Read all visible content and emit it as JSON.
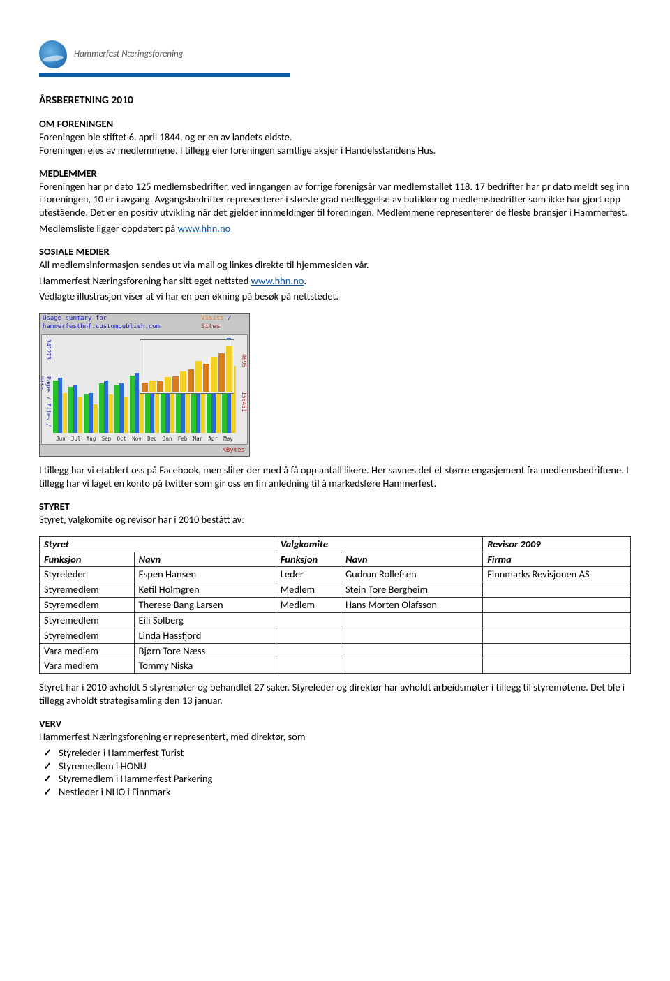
{
  "logo_text": "Hammerfest Næringsforening",
  "title": "ÅRSBERETNING 2010",
  "sections": {
    "om_foreningen": {
      "heading": "OM FORENINGEN",
      "text": "Foreningen ble stiftet 6. april 1844, og er en av landets eldste.\nForeningen eies av medlemmene. I tillegg eier foreningen samtlige aksjer i Handelsstandens Hus."
    },
    "medlemmer": {
      "heading": "MEDLEMMER",
      "text": "Foreningen har pr dato 125 medlemsbedrifter, ved inngangen av forrige forenigsår var medlemstallet 118. 17 bedrifter har pr dato meldt seg inn i foreningen, 10 er i avgang. Avgangsbedrifter representerer i største grad nedleggelse av butikker og medlemsbedrifter som ikke har gjort opp utestående. Det er en positiv utvikling når det gjelder innmeldinger til foreningen. Medlemmene representerer de fleste bransjer i Hammerfest.",
      "link_intro": "Medlemsliste ligger oppdatert på ",
      "link_text": "www.hhn.no",
      "link_url": "http://www.hhn.no"
    },
    "sosiale_medier": {
      "heading": "SOSIALE MEDIER",
      "line1": "All medlemsinformasjon sendes ut via mail og linkes direkte til hjemmesiden vår.",
      "line2a": "Hammerfest Næringsforening har sitt eget nettsted ",
      "link_text": "www.hhn.no",
      "line2b": ".",
      "line3": "Vedlagte illustrasjon viser at vi har en pen økning på besøk på nettstedet."
    },
    "chart": {
      "title_left": "Usage summary for hammerfesthnf.custompublish.com",
      "title_right_a": "Visits",
      "title_right_b": "Sites",
      "left_axis_top": "341273",
      "left_axis_label": "Pages / Files / Hits",
      "right_axis_top": "4695",
      "right_axis_mid": "156451",
      "bottom_label": "KBytes",
      "months": [
        "Jun",
        "Jul",
        "Aug",
        "Sep",
        "Oct",
        "Nov",
        "Dec",
        "Jan",
        "Feb",
        "Mar",
        "Apr",
        "May"
      ],
      "main_bar_heights_pct": [
        [
          55,
          58,
          42
        ],
        [
          48,
          50,
          38
        ],
        [
          40,
          42,
          30
        ],
        [
          52,
          55,
          40
        ],
        [
          50,
          52,
          38
        ],
        [
          60,
          63,
          45
        ],
        [
          62,
          66,
          48
        ],
        [
          78,
          82,
          55
        ],
        [
          70,
          74,
          52
        ],
        [
          80,
          85,
          58
        ],
        [
          85,
          90,
          62
        ],
        [
          95,
          100,
          70
        ]
      ],
      "main_bar_colors": [
        "#2bbf2b",
        "#2b6bd6",
        "#f2d024"
      ],
      "inset_bar_heights_pct": [
        18,
        22,
        20,
        28,
        30,
        40,
        44,
        60,
        55,
        68,
        76,
        90
      ],
      "inset_bar_colors": [
        "#d97a1e",
        "#f2d024"
      ]
    },
    "after_chart": "I tillegg har vi etablert oss på Facebook, men sliter der med å få opp antall likere. Her savnes det et større engasjement fra medlemsbedriftene. I tillegg har vi laget en konto på twitter som gir oss en fin anledning til å markedsføre Hammerfest.",
    "styret": {
      "heading": "STYRET",
      "intro": "Styret, valgkomite og revisor har i 2010 bestått av:",
      "group_headers": [
        "Styret",
        "Valgkomite",
        "Revisor 2009"
      ],
      "col_headers": [
        "Funksjon",
        "Navn",
        "Funksjon",
        "Navn",
        "Firma"
      ],
      "rows": [
        [
          "Styreleder",
          "Espen Hansen",
          "Leder",
          "Gudrun Rollefsen",
          "Finnmarks Revisjonen AS"
        ],
        [
          "Styremedlem",
          "Ketil Holmgren",
          "Medlem",
          "Stein Tore Bergheim",
          ""
        ],
        [
          "Styremedlem",
          "Therese Bang Larsen",
          "Medlem",
          "Hans Morten Olafsson",
          ""
        ],
        [
          "Styremedlem",
          "Eili Solberg",
          "",
          "",
          ""
        ],
        [
          "Styremedlem",
          "Linda Hassfjord",
          "",
          "",
          ""
        ],
        [
          "Vara medlem",
          "Bjørn Tore Næss",
          "",
          "",
          ""
        ],
        [
          "Vara medlem",
          "Tommy Niska",
          "",
          "",
          ""
        ]
      ],
      "after": "Styret har i 2010 avholdt 5 styremøter og behandlet 27 saker. Styreleder og direktør har avholdt arbeidsmøter i tillegg til styremøtene. Det ble i tillegg avholdt strategisamling den 13 januar."
    },
    "verv": {
      "heading": "VERV",
      "intro": "Hammerfest Næringsforening er representert, med direktør, som",
      "items": [
        "Styreleder i Hammerfest Turist",
        "Styremedlem i HONU",
        "Styremedlem i Hammerfest Parkering",
        "Nestleder i NHO i Finnmark"
      ]
    }
  }
}
